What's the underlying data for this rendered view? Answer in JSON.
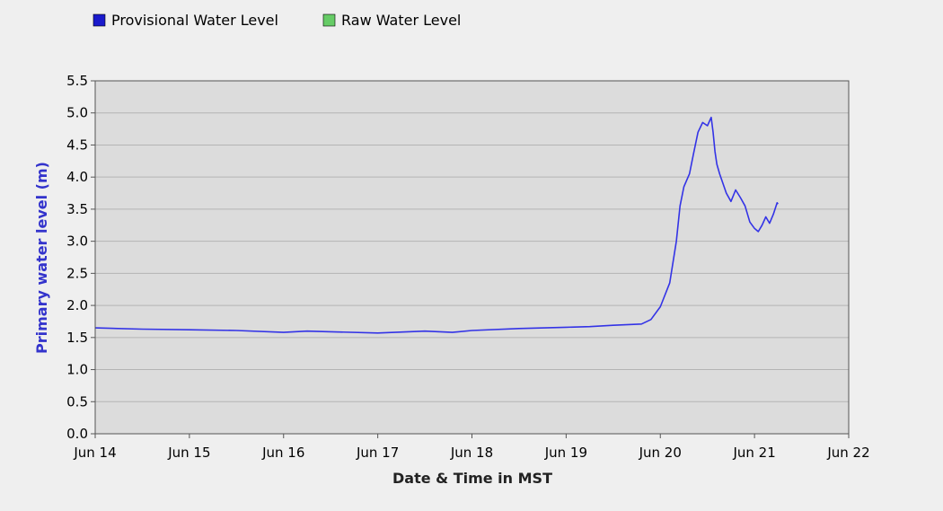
{
  "chart_data": {
    "type": "line",
    "xlabel": "Date & Time in MST",
    "ylabel": "Primary water level (m)",
    "x_ticks": [
      "Jun 14",
      "Jun 15",
      "Jun 16",
      "Jun 17",
      "Jun 18",
      "Jun 19",
      "Jun 20",
      "Jun 21",
      "Jun 22"
    ],
    "y_ticks": [
      "0.0",
      "0.5",
      "1.0",
      "1.5",
      "2.0",
      "2.5",
      "3.0",
      "3.5",
      "4.0",
      "4.5",
      "5.0",
      "5.5"
    ],
    "xlim": [
      "Jun 14 00:00",
      "Jun 22 00:00"
    ],
    "ylim": [
      0,
      5.5
    ],
    "grid": true,
    "legend_position": "top-left",
    "legend": [
      {
        "name": "Provisional Water Level",
        "color": "#1a1acc"
      },
      {
        "name": "Raw Water Level",
        "color": "#66cc66"
      }
    ],
    "series": [
      {
        "name": "Provisional Water Level",
        "color": "#3333e6",
        "x": [
          "Jun 14 00:00",
          "Jun 14 12:00",
          "Jun 15 00:00",
          "Jun 15 12:00",
          "Jun 16 00:00",
          "Jun 16 06:00",
          "Jun 16 12:00",
          "Jun 17 00:00",
          "Jun 17 12:00",
          "Jun 17 19:00",
          "Jun 18 00:00",
          "Jun 18 12:00",
          "Jun 19 00:00",
          "Jun 19 06:00",
          "Jun 19 12:00",
          "Jun 19 19:12",
          "Jun 19 21:36",
          "Jun 20 00:00",
          "Jun 20 02:24",
          "Jun 20 04:05",
          "Jun 20 05:02",
          "Jun 20 06:00",
          "Jun 20 07:26",
          "Jun 20 08:24",
          "Jun 20 09:36",
          "Jun 20 10:48",
          "Jun 20 12:00",
          "Jun 20 12:58",
          "Jun 20 13:26",
          "Jun 20 13:55",
          "Jun 20 14:24",
          "Jun 20 15:07",
          "Jun 20 16:48",
          "Jun 20 18:00",
          "Jun 20 19:12",
          "Jun 20 20:24",
          "Jun 20 21:36",
          "Jun 20 22:48",
          "Jun 21 00:00",
          "Jun 21 00:58",
          "Jun 21 01:55",
          "Jun 21 02:53",
          "Jun 21 03:50",
          "Jun 21 04:48",
          "Jun 21 05:46",
          "Jun 21 06:00"
        ],
        "y": [
          1.65,
          1.63,
          1.62,
          1.61,
          1.58,
          1.6,
          1.59,
          1.57,
          1.6,
          1.58,
          1.61,
          1.64,
          1.66,
          1.67,
          1.69,
          1.71,
          1.78,
          1.98,
          2.35,
          3.0,
          3.55,
          3.85,
          4.05,
          4.35,
          4.7,
          4.85,
          4.8,
          4.93,
          4.7,
          4.4,
          4.2,
          4.05,
          3.75,
          3.62,
          3.8,
          3.68,
          3.55,
          3.3,
          3.2,
          3.15,
          3.25,
          3.38,
          3.28,
          3.42,
          3.6,
          3.58
        ]
      },
      {
        "name": "Raw Water Level",
        "color": "#66cc66",
        "x": [],
        "y": []
      }
    ]
  }
}
